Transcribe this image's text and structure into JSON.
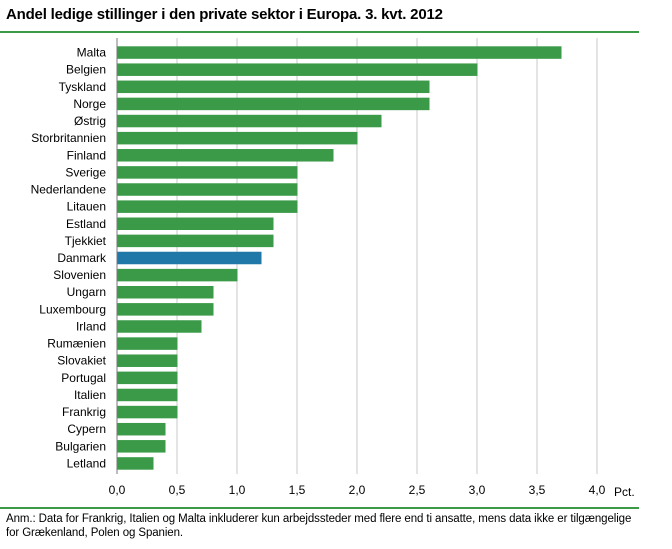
{
  "title": "Andel ledige stillinger i den private sektor i Europa. 3. kvt. 2012",
  "note": "Anm.: Data for Frankrig, Italien og Malta inkluderer kun arbejdssteder med flere end ti ansatte, mens data ikke er tilgængelige for Grækenland, Polen og Spanien.",
  "colors": {
    "bar": "#3a9a48",
    "highlight": "#1f78a8",
    "rule": "#3a9a48",
    "grid": "#c8c8c8"
  },
  "chart_data": {
    "type": "bar",
    "orientation": "horizontal",
    "categories": [
      "Malta",
      "Belgien",
      "Tyskland",
      "Norge",
      "Østrig",
      "Storbritannien",
      "Finland",
      "Sverige",
      "Nederlandene",
      "Litauen",
      "Estland",
      "Tjekkiet",
      "Danmark",
      "Slovenien",
      "Ungarn",
      "Luxembourg",
      "Irland",
      "Rumænien",
      "Slovakiet",
      "Portugal",
      "Italien",
      "Frankrig",
      "Cypern",
      "Bulgarien",
      "Letland"
    ],
    "values": [
      3.7,
      3.0,
      2.6,
      2.6,
      2.2,
      2.0,
      1.8,
      1.5,
      1.5,
      1.5,
      1.3,
      1.3,
      1.2,
      1.0,
      0.8,
      0.8,
      0.7,
      0.5,
      0.5,
      0.5,
      0.5,
      0.5,
      0.4,
      0.4,
      0.3
    ],
    "highlight": "Danmark",
    "xlim": [
      0,
      4.0
    ],
    "xticks": [
      "0,0",
      "0,5",
      "1,0",
      "1,5",
      "2,0",
      "2,5",
      "3,0",
      "3,5",
      "4,0"
    ],
    "xunit": "Pct.",
    "grid": "vertical"
  }
}
